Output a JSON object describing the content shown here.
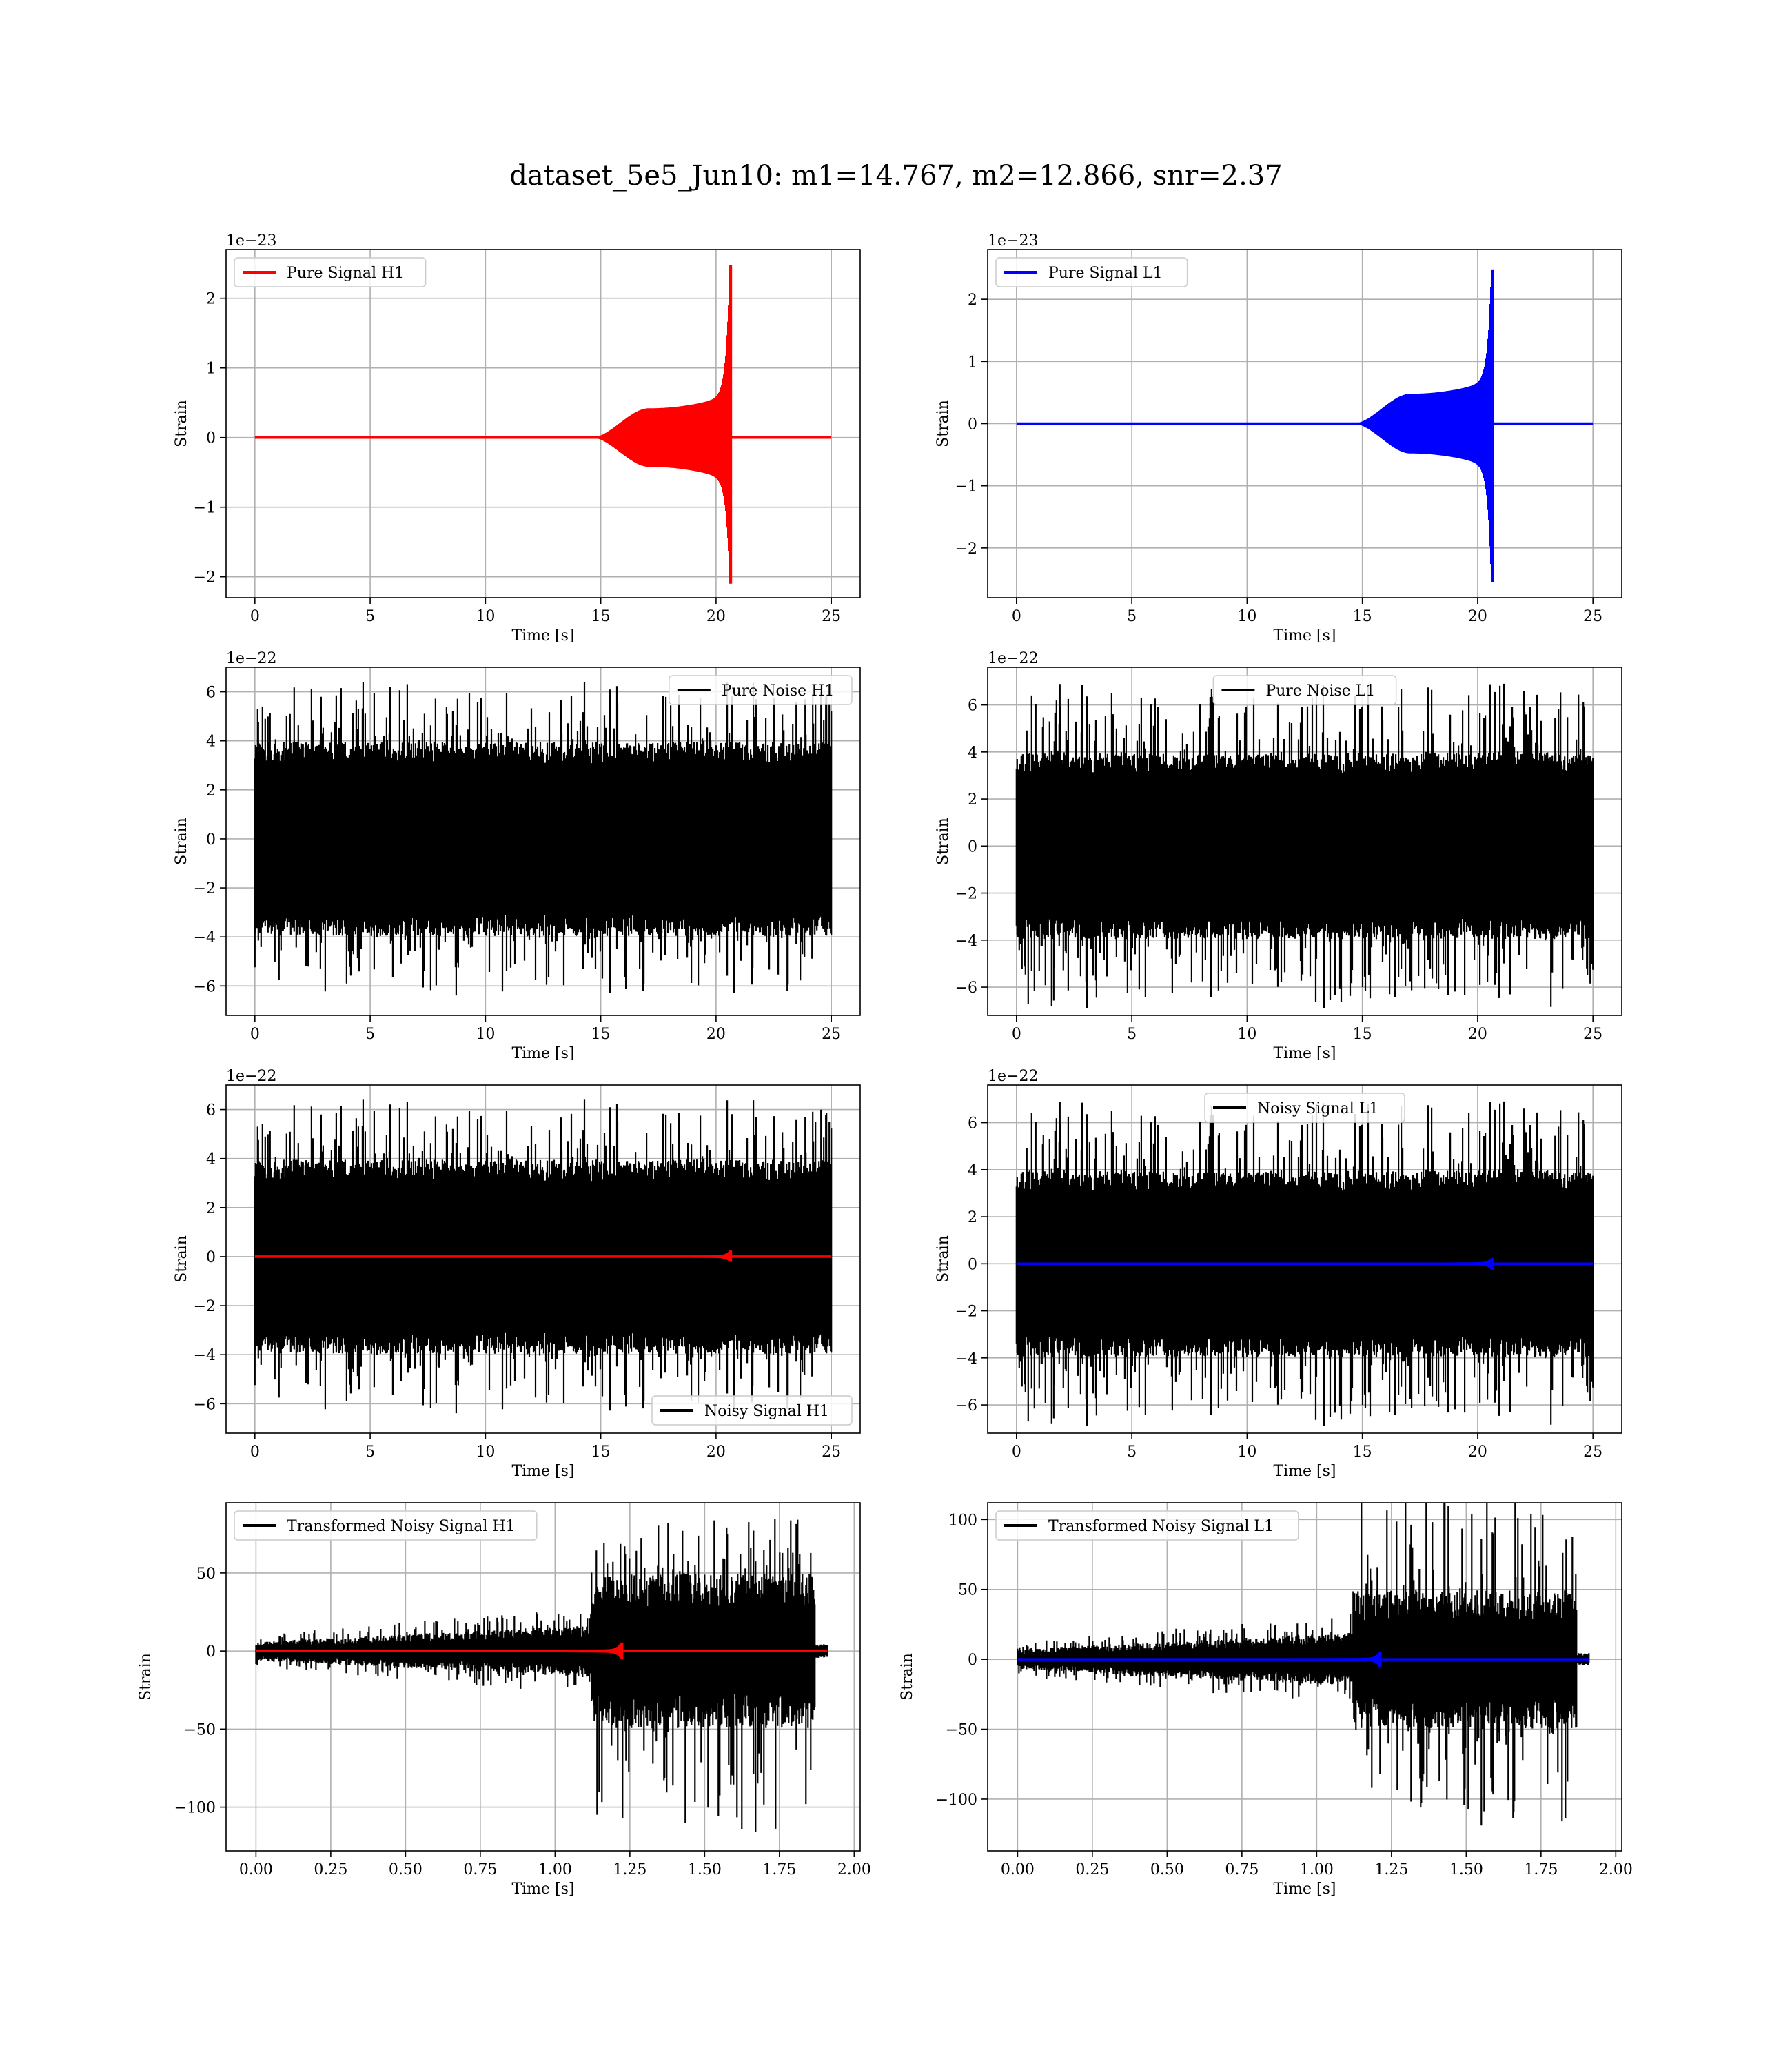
{
  "figure": {
    "title": "dataset_5e5_Jun10: m1=14.767, m2=12.866, snr=2.37"
  },
  "colors": {
    "h1": "#ff0000",
    "l1": "#0000ff",
    "noise": "#000000",
    "grid": "#b0b0b0"
  },
  "chart_data": [
    {
      "id": "pure-signal-h1",
      "type": "line",
      "xlabel": "Time [s]",
      "ylabel": "Strain",
      "offset_text": "1e−23",
      "xlim": [
        -1.25,
        26.25
      ],
      "ylim": [
        -2.3,
        2.7
      ],
      "xticks": [
        0,
        5,
        10,
        15,
        20,
        25
      ],
      "xtick_labels": [
        "0",
        "5",
        "10",
        "15",
        "20",
        "25"
      ],
      "yticks": [
        -2,
        -1,
        0,
        1,
        2
      ],
      "ytick_labels": [
        "−2",
        "−1",
        "0",
        "1",
        "2"
      ],
      "legend": "upper left",
      "series": [
        {
          "name": "Pure Signal H1",
          "color": "#ff0000",
          "kind": "chirp",
          "t_start": 0,
          "t_end": 25,
          "t_merge": 20.6,
          "shoulder": 0.42,
          "pos_peak": 2.48,
          "neg_peak": -2.1
        }
      ]
    },
    {
      "id": "pure-signal-l1",
      "type": "line",
      "xlabel": "Time [s]",
      "ylabel": "Strain",
      "offset_text": "1e−23",
      "xlim": [
        -1.25,
        26.25
      ],
      "ylim": [
        -2.8,
        2.8
      ],
      "xticks": [
        0,
        5,
        10,
        15,
        20,
        25
      ],
      "xtick_labels": [
        "0",
        "5",
        "10",
        "15",
        "20",
        "25"
      ],
      "yticks": [
        -2,
        -1,
        0,
        1,
        2
      ],
      "ytick_labels": [
        "−2",
        "−1",
        "0",
        "1",
        "2"
      ],
      "legend": "upper left",
      "series": [
        {
          "name": "Pure Signal L1",
          "color": "#0000ff",
          "kind": "chirp",
          "t_start": 0,
          "t_end": 25,
          "t_merge": 20.6,
          "shoulder": 0.48,
          "pos_peak": 2.48,
          "neg_peak": -2.55
        }
      ]
    },
    {
      "id": "pure-noise-h1",
      "type": "line",
      "xlabel": "Time [s]",
      "ylabel": "Strain",
      "offset_text": "1e−22",
      "xlim": [
        -1.25,
        26.25
      ],
      "ylim": [
        -7.2,
        7.0
      ],
      "xticks": [
        0,
        5,
        10,
        15,
        20,
        25
      ],
      "xtick_labels": [
        "0",
        "5",
        "10",
        "15",
        "20",
        "25"
      ],
      "yticks": [
        -6,
        -4,
        -2,
        0,
        2,
        4,
        6
      ],
      "ytick_labels": [
        "−6",
        "−4",
        "−2",
        "0",
        "2",
        "4",
        "6"
      ],
      "legend": "upper right",
      "series": [
        {
          "name": "Pure Noise H1",
          "color": "#000000",
          "kind": "noise",
          "t_start": 0,
          "t_end": 25,
          "band": 3.6,
          "peak": 6.4,
          "seed": 11
        }
      ]
    },
    {
      "id": "pure-noise-l1",
      "type": "line",
      "xlabel": "Time [s]",
      "ylabel": "Strain",
      "offset_text": "1e−22",
      "xlim": [
        -1.25,
        26.25
      ],
      "ylim": [
        -7.2,
        7.6
      ],
      "xticks": [
        0,
        5,
        10,
        15,
        20,
        25
      ],
      "xtick_labels": [
        "0",
        "5",
        "10",
        "15",
        "20",
        "25"
      ],
      "yticks": [
        -6,
        -4,
        -2,
        0,
        2,
        4,
        6
      ],
      "ytick_labels": [
        "−6",
        "−4",
        "−2",
        "0",
        "2",
        "4",
        "6"
      ],
      "legend": "upper center",
      "series": [
        {
          "name": "Pure Noise L1",
          "color": "#000000",
          "kind": "noise",
          "t_start": 0,
          "t_end": 25,
          "band": 3.6,
          "peak": 6.9,
          "seed": 23
        }
      ]
    },
    {
      "id": "noisy-signal-h1",
      "type": "line",
      "xlabel": "Time [s]",
      "ylabel": "Strain",
      "offset_text": "1e−22",
      "xlim": [
        -1.25,
        26.25
      ],
      "ylim": [
        -7.2,
        7.0
      ],
      "xticks": [
        0,
        5,
        10,
        15,
        20,
        25
      ],
      "xtick_labels": [
        "0",
        "5",
        "10",
        "15",
        "20",
        "25"
      ],
      "yticks": [
        -6,
        -4,
        -2,
        0,
        2,
        4,
        6
      ],
      "ytick_labels": [
        "−6",
        "−4",
        "−2",
        "0",
        "2",
        "4",
        "6"
      ],
      "legend": "lower right",
      "series": [
        {
          "name": "Noisy Signal H1",
          "color": "#000000",
          "kind": "noise",
          "t_start": 0,
          "t_end": 25,
          "band": 3.6,
          "peak": 6.4,
          "seed": 11
        },
        {
          "name": "",
          "color": "#ff0000",
          "kind": "chirp",
          "t_start": 0,
          "t_end": 25,
          "t_merge": 20.6,
          "shoulder": 0.04,
          "pos_peak": 0.25,
          "neg_peak": -0.21
        }
      ]
    },
    {
      "id": "noisy-signal-l1",
      "type": "line",
      "xlabel": "Time [s]",
      "ylabel": "Strain",
      "offset_text": "1e−22",
      "xlim": [
        -1.25,
        26.25
      ],
      "ylim": [
        -7.2,
        7.6
      ],
      "xticks": [
        0,
        5,
        10,
        15,
        20,
        25
      ],
      "xtick_labels": [
        "0",
        "5",
        "10",
        "15",
        "20",
        "25"
      ],
      "yticks": [
        -6,
        -4,
        -2,
        0,
        2,
        4,
        6
      ],
      "ytick_labels": [
        "−6",
        "−4",
        "−2",
        "0",
        "2",
        "4",
        "6"
      ],
      "legend": "upper center",
      "series": [
        {
          "name": "Noisy Signal L1",
          "color": "#000000",
          "kind": "noise",
          "t_start": 0,
          "t_end": 25,
          "band": 3.6,
          "peak": 6.9,
          "seed": 23
        },
        {
          "name": "",
          "color": "#0000ff",
          "kind": "chirp",
          "t_start": 0,
          "t_end": 25,
          "t_merge": 20.6,
          "shoulder": 0.05,
          "pos_peak": 0.25,
          "neg_peak": -0.25
        }
      ]
    },
    {
      "id": "transformed-noisy-signal-h1",
      "type": "line",
      "xlabel": "Time [s]",
      "ylabel": "Strain",
      "offset_text": "",
      "xlim": [
        -0.1,
        2.02
      ],
      "ylim": [
        -128,
        95
      ],
      "xticks": [
        0.0,
        0.25,
        0.5,
        0.75,
        1.0,
        1.25,
        1.5,
        1.75,
        2.0
      ],
      "xtick_labels": [
        "0.00",
        "0.25",
        "0.50",
        "0.75",
        "1.00",
        "1.25",
        "1.50",
        "1.75",
        "2.00"
      ],
      "yticks": [
        -100,
        -50,
        0,
        50
      ],
      "ytick_labels": [
        "−100",
        "−50",
        "0",
        "50"
      ],
      "legend": "upper left",
      "series": [
        {
          "name": "Transformed Noisy Signal H1",
          "color": "#000000",
          "kind": "whitened",
          "t_start": 0,
          "t_end": 1.91,
          "t_jump": 1.12,
          "t_end_loud": 1.87,
          "quiet_band": 5,
          "quiet_end": 14,
          "loud_band": 45,
          "loud_peak": 85,
          "loud_neg_peak": -118,
          "seed": 37
        },
        {
          "name": "",
          "color": "#ff0000",
          "kind": "chirp",
          "t_start": 0,
          "t_end": 1.91,
          "t_merge": 1.22,
          "shoulder": 0.8,
          "pos_peak": 5.5,
          "neg_peak": -5.0
        }
      ]
    },
    {
      "id": "transformed-noisy-signal-l1",
      "type": "line",
      "xlabel": "Time [s]",
      "ylabel": "Strain",
      "offset_text": "",
      "xlim": [
        -0.1,
        2.02
      ],
      "ylim": [
        -137,
        112
      ],
      "xticks": [
        0.0,
        0.25,
        0.5,
        0.75,
        1.0,
        1.25,
        1.5,
        1.75,
        2.0
      ],
      "xtick_labels": [
        "0.00",
        "0.25",
        "0.50",
        "0.75",
        "1.00",
        "1.25",
        "1.50",
        "1.75",
        "2.00"
      ],
      "yticks": [
        -100,
        -50,
        0,
        50,
        100
      ],
      "ytick_labels": [
        "−100",
        "−50",
        "0",
        "50",
        "100"
      ],
      "legend": "upper left",
      "series": [
        {
          "name": "Transformed Noisy Signal L1",
          "color": "#000000",
          "kind": "whitened",
          "t_start": 0,
          "t_end": 1.91,
          "t_jump": 1.12,
          "t_end_loud": 1.87,
          "quiet_band": 6,
          "quiet_end": 16,
          "loud_band": 45,
          "loud_peak": 120,
          "loud_neg_peak": -123,
          "seed": 53
        },
        {
          "name": "",
          "color": "#0000ff",
          "kind": "chirp",
          "t_start": 0,
          "t_end": 1.91,
          "t_merge": 1.21,
          "shoulder": 0.8,
          "pos_peak": 5.5,
          "neg_peak": -5.5
        }
      ]
    }
  ]
}
